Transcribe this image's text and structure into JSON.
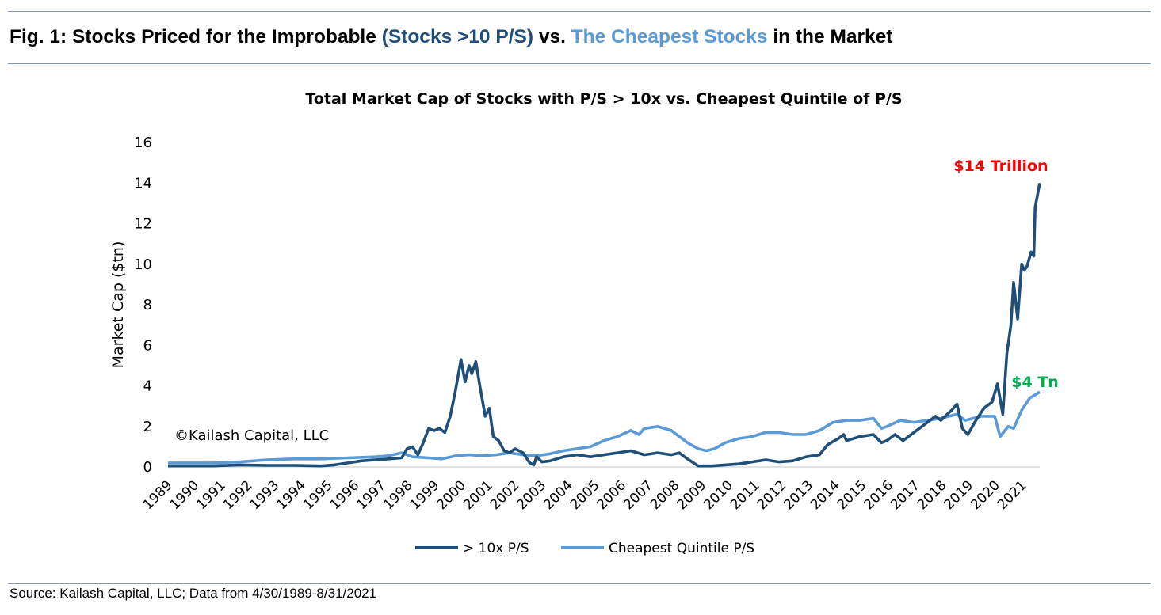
{
  "figure": {
    "title_parts": [
      {
        "text": "Fig. 1: Stocks Priced for the Improbable ",
        "color": "#000000"
      },
      {
        "text": "(Stocks >10 P/S)",
        "color": "#1f4e79"
      },
      {
        "text": " vs. ",
        "color": "#000000"
      },
      {
        "text": "The Cheapest Stocks",
        "color": "#5b9bd5"
      },
      {
        "text": " in the Market",
        "color": "#000000"
      }
    ],
    "source": "Source: Kailash Capital, LLC; Data from 4/30/1989-8/31/2021"
  },
  "chart_data": {
    "type": "line",
    "title": "Total Market Cap of Stocks with P/S > 10x vs. Cheapest Quintile of P/S",
    "xlabel": "",
    "ylabel": "Market Cap ($tn)",
    "ylim": [
      0,
      16
    ],
    "yticks": [
      0,
      2,
      4,
      6,
      8,
      10,
      12,
      14,
      16
    ],
    "xlim": [
      1989.33,
      2021.67
    ],
    "xticks": [
      "1989",
      "1990",
      "1991",
      "1992",
      "1993",
      "1994",
      "1995",
      "1996",
      "1997",
      "1998",
      "1999",
      "2000",
      "2001",
      "2002",
      "2003",
      "2004",
      "2005",
      "2006",
      "2007",
      "2008",
      "2009",
      "2010",
      "2011",
      "2012",
      "2013",
      "2014",
      "2015",
      "2016",
      "2017",
      "2018",
      "2019",
      "2020",
      "2021"
    ],
    "grid": false,
    "legend_position": "bottom",
    "watermark": "©Kailash Capital, LLC",
    "annotations": [
      {
        "text": "$14 Trillion",
        "color": "#ff0000",
        "series": "> 10x P/S"
      },
      {
        "text": "$4 Tn",
        "color": "#00b050",
        "series": "Cheapest Quintile P/S"
      }
    ],
    "series": [
      {
        "name": "> 10x P/S",
        "color": "#1f4e79",
        "x": [
          1989.33,
          1991,
          1992,
          1993,
          1994,
          1995,
          1995.5,
          1996,
          1996.5,
          1997,
          1997.5,
          1998,
          1998.2,
          1998.4,
          1998.6,
          1998.8,
          1999,
          1999.2,
          1999.4,
          1999.6,
          1999.8,
          2000,
          2000.2,
          2000.35,
          2000.5,
          2000.6,
          2000.75,
          2000.9,
          2001.1,
          2001.25,
          2001.4,
          2001.6,
          2001.8,
          2002,
          2002.2,
          2002.5,
          2002.75,
          2002.9,
          2003,
          2003.2,
          2003.5,
          2004,
          2004.5,
          2005,
          2005.5,
          2006,
          2006.5,
          2007,
          2007.5,
          2008,
          2008.3,
          2008.6,
          2009,
          2009.5,
          2010,
          2010.5,
          2011,
          2011.5,
          2012,
          2012.5,
          2013,
          2013.5,
          2013.8,
          2014.2,
          2014.4,
          2014.5,
          2015,
          2015.5,
          2015.8,
          2016,
          2016.3,
          2016.6,
          2017,
          2017.4,
          2017.8,
          2018,
          2018.4,
          2018.6,
          2018.8,
          2019,
          2019.3,
          2019.6,
          2019.9,
          2020.1,
          2020.3,
          2020.45,
          2020.6,
          2020.7,
          2020.85,
          2021,
          2021.1,
          2021.2,
          2021.35,
          2021.45,
          2021.5,
          2021.67
        ],
        "values": [
          0.05,
          0.05,
          0.1,
          0.08,
          0.08,
          0.05,
          0.1,
          0.2,
          0.3,
          0.35,
          0.4,
          0.45,
          0.9,
          1.0,
          0.6,
          1.2,
          1.9,
          1.8,
          1.9,
          1.7,
          2.5,
          3.8,
          5.3,
          4.2,
          5.0,
          4.6,
          5.2,
          4.0,
          2.5,
          2.9,
          1.5,
          1.3,
          0.8,
          0.7,
          0.9,
          0.7,
          0.2,
          0.1,
          0.5,
          0.25,
          0.3,
          0.5,
          0.6,
          0.5,
          0.6,
          0.7,
          0.8,
          0.6,
          0.7,
          0.6,
          0.7,
          0.4,
          0.05,
          0.05,
          0.1,
          0.15,
          0.25,
          0.35,
          0.25,
          0.3,
          0.5,
          0.6,
          1.1,
          1.4,
          1.6,
          1.3,
          1.5,
          1.6,
          1.2,
          1.3,
          1.6,
          1.3,
          1.7,
          2.1,
          2.5,
          2.3,
          2.8,
          3.1,
          1.9,
          1.6,
          2.3,
          2.9,
          3.2,
          4.1,
          2.6,
          5.6,
          7.0,
          9.1,
          7.3,
          10.0,
          9.7,
          9.9,
          10.6,
          10.4,
          12.8,
          14.0
        ]
      },
      {
        "name": "Cheapest Quintile P/S",
        "color": "#5b9bd5",
        "x": [
          1989.33,
          1990,
          1991,
          1992,
          1993,
          1994,
          1995,
          1996,
          1997,
          1997.5,
          1998,
          1998.4,
          1999,
          1999.5,
          2000,
          2000.5,
          2001,
          2001.5,
          2002,
          2002.5,
          2003,
          2003.5,
          2004,
          2004.5,
          2005,
          2005.5,
          2006,
          2006.5,
          2006.8,
          2007,
          2007.5,
          2008,
          2008.3,
          2008.6,
          2009,
          2009.3,
          2009.6,
          2010,
          2010.5,
          2011,
          2011.5,
          2012,
          2012.5,
          2013,
          2013.5,
          2014,
          2014.5,
          2015,
          2015.5,
          2015.8,
          2016,
          2016.5,
          2017,
          2017.5,
          2018,
          2018.6,
          2018.9,
          2019.5,
          2020,
          2020.2,
          2020.5,
          2020.7,
          2021,
          2021.3,
          2021.67
        ],
        "values": [
          0.2,
          0.2,
          0.2,
          0.25,
          0.35,
          0.4,
          0.4,
          0.45,
          0.5,
          0.55,
          0.7,
          0.5,
          0.45,
          0.4,
          0.55,
          0.6,
          0.55,
          0.6,
          0.7,
          0.6,
          0.55,
          0.65,
          0.8,
          0.9,
          1.0,
          1.3,
          1.5,
          1.8,
          1.6,
          1.9,
          2.0,
          1.8,
          1.5,
          1.2,
          0.9,
          0.8,
          0.9,
          1.2,
          1.4,
          1.5,
          1.7,
          1.7,
          1.6,
          1.6,
          1.8,
          2.2,
          2.3,
          2.3,
          2.4,
          1.9,
          2.0,
          2.3,
          2.2,
          2.3,
          2.4,
          2.6,
          2.3,
          2.5,
          2.5,
          1.5,
          2.0,
          1.9,
          2.8,
          3.4,
          3.7
        ]
      }
    ]
  }
}
